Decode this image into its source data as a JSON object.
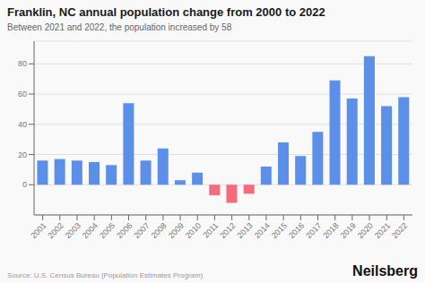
{
  "chart_data": {
    "type": "bar",
    "title": "Franklin, NC annual population change from 2000 to 2022",
    "subtitle": "Between 2021 and 2022, the population increased by 58",
    "annotations": [
      "Source: U.S. Census Bureau (Population Estimates Program)",
      "Neilsberg"
    ],
    "categories": [
      "2001",
      "2002",
      "2003",
      "2004",
      "2005",
      "2006",
      "2007",
      "2008",
      "2009",
      "2010",
      "2011",
      "2012",
      "2013",
      "2014",
      "2015",
      "2016",
      "2017",
      "2018",
      "2019",
      "2020",
      "2021",
      "2022"
    ],
    "values": [
      16,
      17,
      16,
      15,
      13,
      54,
      16,
      24,
      3,
      8,
      -7,
      -12,
      -6,
      12,
      28,
      19,
      35,
      69,
      57,
      85,
      52,
      58
    ],
    "colors": [
      "#5B8FE8",
      "#5B8FE8",
      "#5B8FE8",
      "#5B8FE8",
      "#5B8FE8",
      "#5B8FE8",
      "#5B8FE8",
      "#5B8FE8",
      "#5B8FE8",
      "#5B8FE8",
      "#F46B7B",
      "#F46B7B",
      "#F46B7B",
      "#5B8FE8",
      "#5B8FE8",
      "#5B8FE8",
      "#5B8FE8",
      "#5B8FE8",
      "#5B8FE8",
      "#5B8FE8",
      "#5B8FE8",
      "#5B8FE8"
    ],
    "ylim": [
      -20,
      95
    ],
    "yticks": [
      0,
      20,
      40,
      60,
      80
    ],
    "grid": true
  }
}
